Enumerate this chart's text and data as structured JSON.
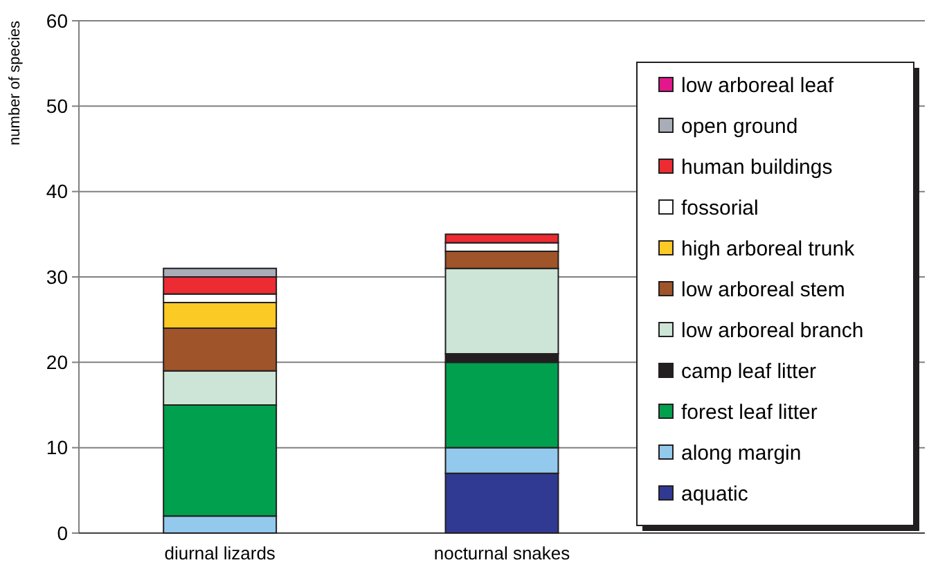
{
  "chart_data": {
    "type": "bar",
    "stacked": true,
    "ylabel": "number of species",
    "categories": [
      "diurnal lizards",
      "nocturnal snakes",
      null
    ],
    "ylim": [
      0,
      60
    ],
    "yticks": [
      0,
      10,
      20,
      30,
      40,
      50,
      60
    ],
    "grid": "y",
    "legend": "right",
    "series": [
      {
        "name": "aquatic",
        "color": "#313a93",
        "values": [
          0,
          7,
          null
        ]
      },
      {
        "name": "along margin",
        "color": "#93c9ec",
        "values": [
          2,
          3,
          null
        ]
      },
      {
        "name": "forest leaf litter",
        "color": "#00a04e",
        "values": [
          13,
          10,
          null
        ]
      },
      {
        "name": "camp leaf litter",
        "color": "#231f20",
        "values": [
          0,
          1,
          null
        ]
      },
      {
        "name": "low arboreal branch",
        "color": "#cde5d6",
        "values": [
          4,
          10,
          null
        ]
      },
      {
        "name": "low arboreal stem",
        "color": "#a0542a",
        "values": [
          5,
          2,
          null
        ]
      },
      {
        "name": "high arboreal trunk",
        "color": "#fcca25",
        "values": [
          3,
          0,
          null
        ]
      },
      {
        "name": "fossorial",
        "color": "#ffffff",
        "values": [
          1,
          1,
          null
        ]
      },
      {
        "name": "human buildings",
        "color": "#ed2b33",
        "values": [
          2,
          1,
          null
        ]
      },
      {
        "name": "open ground",
        "color": "#a8adb7",
        "values": [
          1,
          0,
          null
        ]
      },
      {
        "name": "low arboreal leaf",
        "color": "#e3168c",
        "values": [
          0,
          0,
          null
        ]
      }
    ]
  }
}
